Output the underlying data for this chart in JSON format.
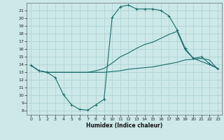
{
  "xlabel": "Humidex (Indice chaleur)",
  "background_color": "#cce8e8",
  "grid_color": "#aad0d0",
  "line_color": "#1a6b6b",
  "xlim": [
    -0.5,
    23.5
  ],
  "ylim": [
    7.5,
    22.0
  ],
  "xticks": [
    0,
    1,
    2,
    3,
    4,
    5,
    6,
    7,
    8,
    9,
    10,
    11,
    12,
    13,
    14,
    15,
    16,
    17,
    18,
    19,
    20,
    21,
    22,
    23
  ],
  "yticks": [
    8,
    9,
    10,
    11,
    12,
    13,
    14,
    15,
    16,
    17,
    18,
    19,
    20,
    21
  ],
  "line1_x": [
    0,
    1,
    2,
    3,
    4,
    5,
    6,
    7,
    8,
    9,
    10,
    11,
    12,
    13,
    14,
    15,
    16,
    17,
    18,
    19,
    20,
    21,
    22,
    23
  ],
  "line1_y": [
    13.9,
    13.2,
    13.0,
    12.3,
    10.1,
    8.8,
    8.2,
    8.1,
    8.8,
    9.5,
    20.1,
    21.5,
    21.7,
    21.2,
    21.2,
    21.2,
    21.0,
    20.3,
    18.5,
    16.1,
    14.8,
    15.0,
    14.1,
    13.5
  ],
  "line2_x": [
    0,
    1,
    2,
    3,
    4,
    5,
    6,
    7,
    8,
    9,
    10,
    11,
    12,
    13,
    14,
    15,
    16,
    17,
    18,
    19,
    20,
    21,
    22,
    23
  ],
  "line2_y": [
    13.9,
    13.2,
    13.0,
    13.0,
    13.0,
    13.0,
    13.0,
    13.0,
    13.0,
    13.0,
    13.1,
    13.2,
    13.4,
    13.5,
    13.6,
    13.7,
    13.9,
    14.1,
    14.3,
    14.6,
    14.7,
    14.8,
    14.6,
    13.4
  ],
  "line3_x": [
    0,
    1,
    2,
    3,
    4,
    5,
    6,
    7,
    8,
    9,
    10,
    11,
    12,
    13,
    14,
    15,
    16,
    17,
    18,
    19,
    20,
    21,
    22,
    23
  ],
  "line3_y": [
    13.9,
    13.2,
    13.0,
    13.0,
    13.0,
    13.0,
    13.0,
    13.0,
    13.2,
    13.5,
    14.2,
    15.0,
    15.5,
    16.1,
    16.6,
    16.9,
    17.4,
    17.9,
    18.3,
    15.9,
    14.8,
    14.4,
    14.0,
    13.5
  ]
}
